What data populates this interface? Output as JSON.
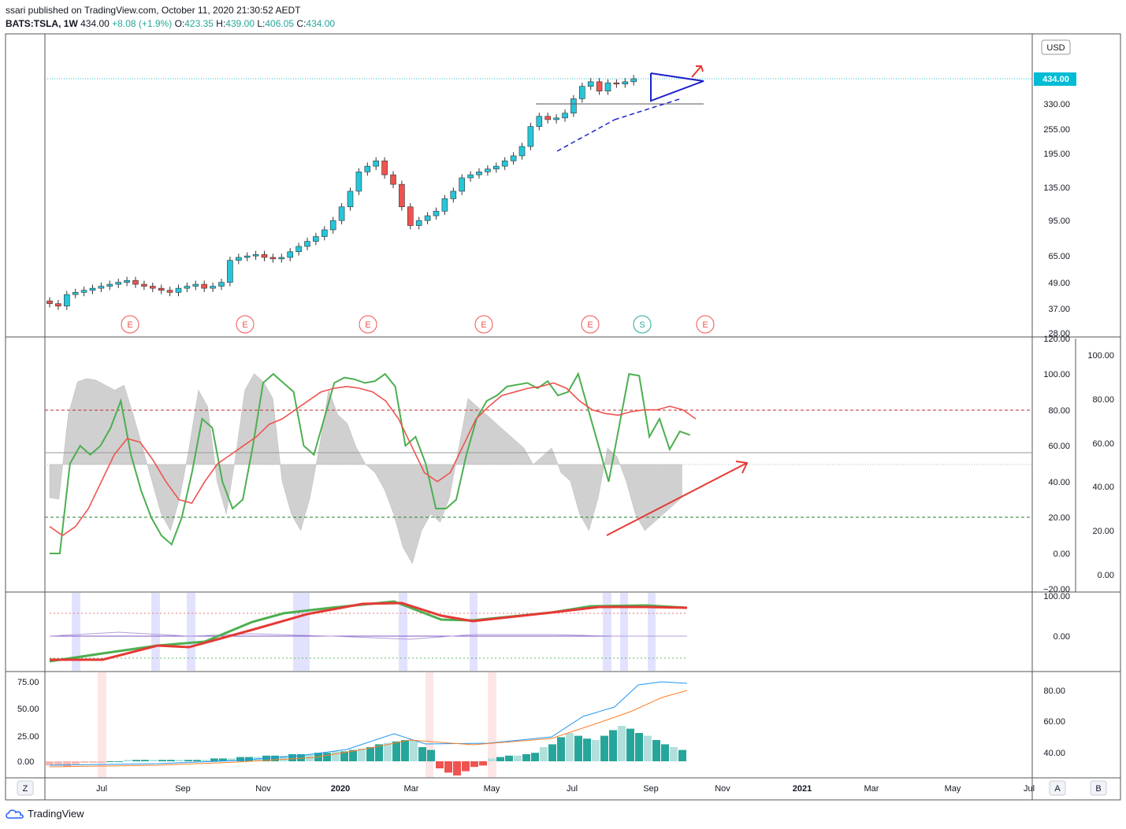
{
  "header": {
    "publisher": "ssari published on TradingView.com, October 11, 2020 21:30:52 AEDT",
    "symbol": "BATS:TSLA, 1W",
    "last": "434.00",
    "change": "+8.08 (+1.9%)",
    "ohlc": {
      "o_label": "O:",
      "o": "423.35",
      "h_label": "H:",
      "h": "439.00",
      "l_label": "L:",
      "l": "406.05",
      "c_label": "C:",
      "c": "434.00"
    }
  },
  "footer": {
    "brand": "TradingView"
  },
  "colors": {
    "up": "#26c6da",
    "down": "#ef5350",
    "sma": "#4caf50",
    "red": "#e53935",
    "blue": "#1e22c8",
    "grid": "#e0e3eb"
  },
  "price_axis": {
    "currency": "USD",
    "last_price": "434.00",
    "ticks": [
      "330.00",
      "255.00",
      "195.00",
      "135.00",
      "95.00",
      "65.00",
      "49.00",
      "37.00",
      "28.00"
    ]
  },
  "time_axis": {
    "labels": [
      "Jul",
      "Sep",
      "Nov",
      "2020",
      "Mar",
      "May",
      "Jul",
      "Sep",
      "Nov",
      "2021",
      "Mar",
      "May",
      "Jul"
    ]
  },
  "events": [
    "E",
    "E",
    "E",
    "E",
    "E",
    "S",
    "E"
  ],
  "corner_buttons": {
    "left": "Z",
    "a": "A",
    "b": "B"
  },
  "stoch": {
    "left_ticks": [
      "120.00",
      "100.00",
      "80.00",
      "60.00",
      "40.00",
      "20.00",
      "0.00",
      "−20.00"
    ],
    "right_ticks": [
      "100.00",
      "80.00",
      "60.00",
      "40.00",
      "20.00",
      "0.00"
    ]
  },
  "pane3": {
    "ticks": [
      "100.00",
      "0.00"
    ]
  },
  "pane4": {
    "left_ticks": [
      "75.00",
      "50.00",
      "25.00",
      "0.00"
    ],
    "right_ticks": [
      "80.00",
      "60.00",
      "40.00"
    ]
  },
  "chart_data": {
    "type": "line",
    "title": "",
    "weekly_close_approx": [
      39,
      38,
      43,
      44,
      45,
      46,
      47,
      48,
      49,
      50,
      48,
      47,
      46,
      45,
      44,
      46,
      47,
      48,
      46,
      47,
      49,
      62,
      64,
      65,
      66,
      64,
      63,
      64,
      68,
      72,
      76,
      80,
      86,
      95,
      110,
      130,
      160,
      170,
      180,
      155,
      140,
      110,
      90,
      95,
      100,
      105,
      120,
      130,
      150,
      155,
      160,
      165,
      170,
      180,
      190,
      210,
      260,
      290,
      280,
      285,
      300,
      350,
      400,
      420,
      380,
      415,
      410,
      420,
      434
    ],
    "price_ylim": [
      28,
      500
    ]
  }
}
